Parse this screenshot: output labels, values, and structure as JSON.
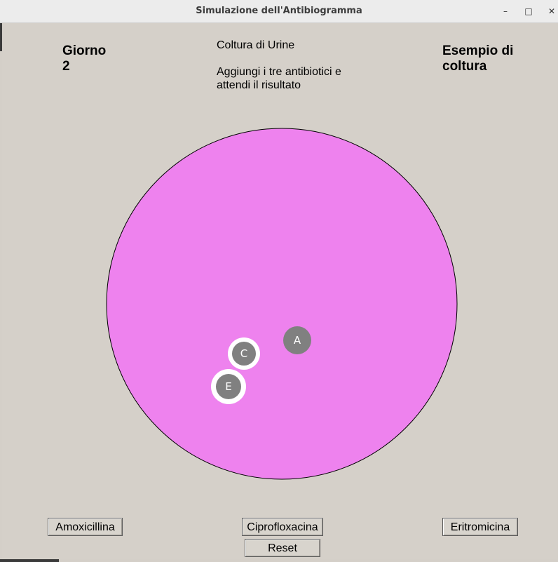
{
  "window": {
    "title": "Simulazione dell'Antibiogramma",
    "controls": {
      "minimize": "–",
      "maximize": "□",
      "close": "✕"
    }
  },
  "header": {
    "day_label": "Giorno\n2",
    "culture_label": "Coltura di Urine",
    "instructions": "Aggiungi i tre antibiotici e\nattendi il risultato",
    "sample_label": "Esempio di\ncoltura"
  },
  "plate": {
    "color": "#ee82ee",
    "disks": [
      {
        "letter": "A"
      },
      {
        "letter": "C"
      },
      {
        "letter": "E"
      }
    ],
    "disk_color": "#808080",
    "inhibition_color": "#ffffff"
  },
  "buttons": {
    "amoxicillin": "Amoxicillina",
    "ciprofloxacin": "Ciprofloxacina",
    "erythromycin": "Eritromicina",
    "reset": "Reset"
  }
}
